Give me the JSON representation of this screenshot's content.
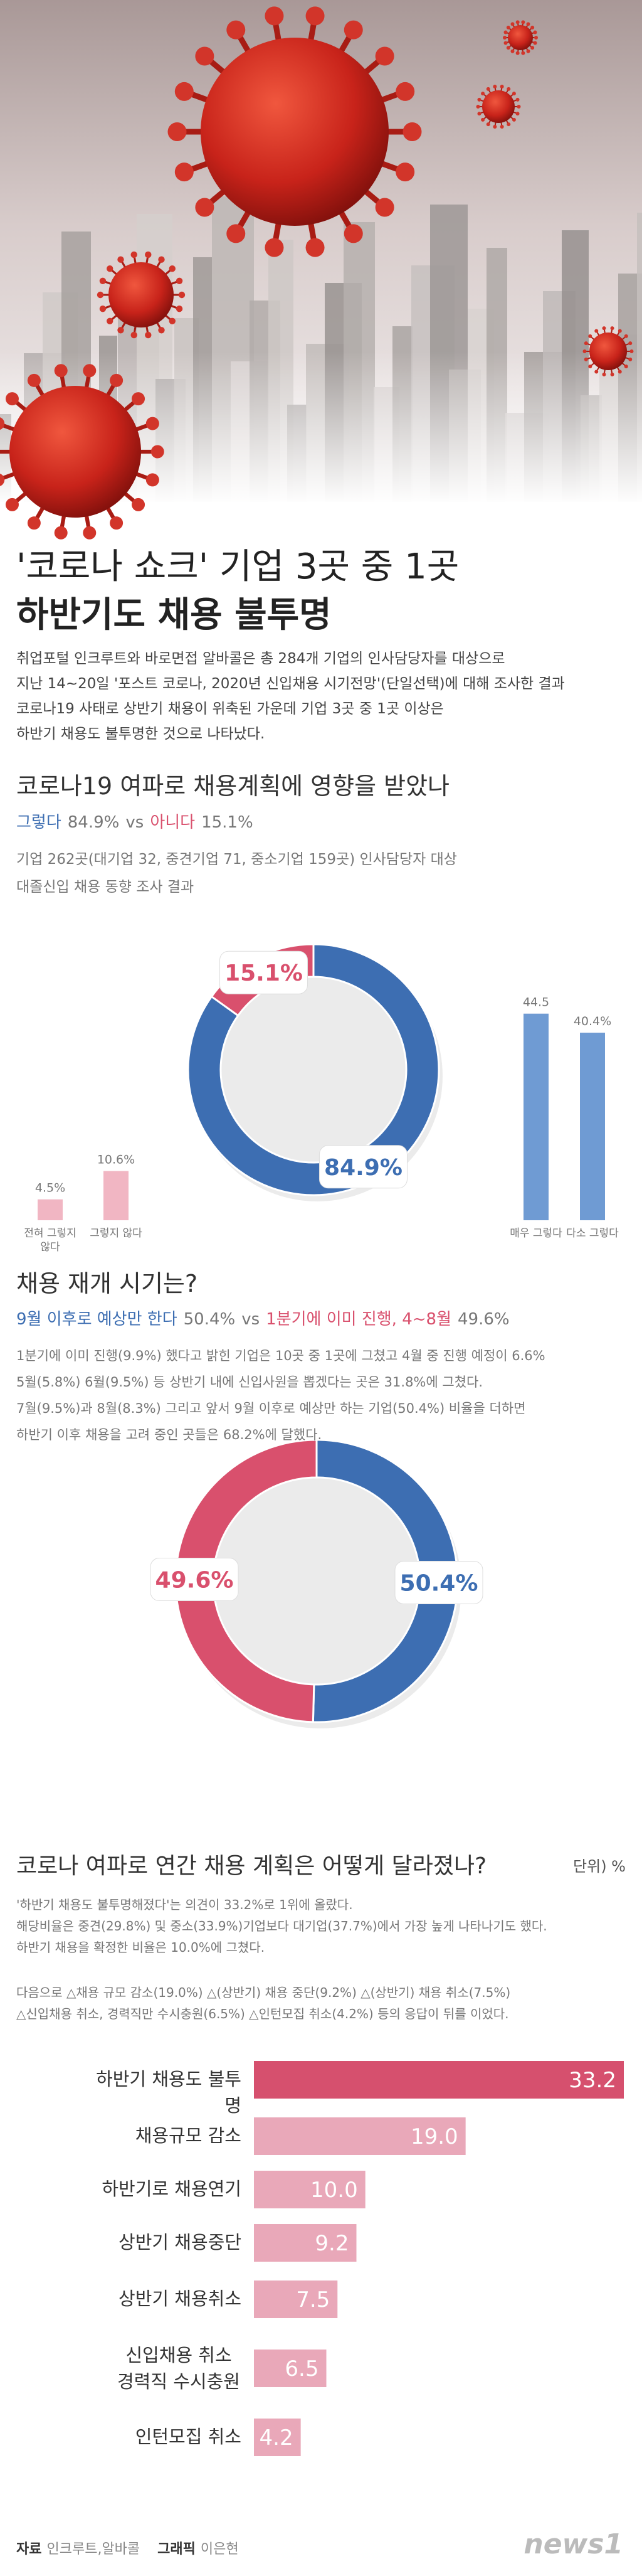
{
  "header": {
    "title_line1": "'코로나 쇼크' 기업 3곳 중 1곳",
    "title_line2": "하반기도 채용 불투명",
    "intro": [
      "취업포털 인크루트와 바로면접 알바콜은 총 284개 기업의 인사담당자를 대상으로",
      "지난 14~20일 '포스트 코로나, 2020년 신입채용 시기전망'(단일선택)에 대해 조사한 결과",
      "코로나19 사태로 상반기 채용이 위축된 가운데 기업 3곳 중 1곳 이상은",
      "하반기 채용도 불투명한 것으로 나타났다."
    ]
  },
  "chart_data": [
    {
      "type": "donut",
      "title": "코로나19 여파로 채용계획에 영향을 받았나",
      "versus": "vs",
      "note": [
        "기업 262곳(대기업 32, 중견기업 71, 중소기업 159곳) 인사담당자 대상",
        "대졸신입 채용 동향 조사 결과"
      ],
      "categories": [
        "그렇다",
        "아니다"
      ],
      "values": [
        84.9,
        15.1
      ],
      "value_labels": [
        "84.9%",
        "15.1%"
      ],
      "colors": [
        "#3d6eb2",
        "#d9506d"
      ]
    },
    {
      "type": "bar",
      "categories": [
        "전혀 그렇지 않다",
        "그렇지 않다",
        "매우 그렇다",
        "다소 그렇다"
      ],
      "values": [
        4.5,
        10.6,
        44.5,
        40.4
      ],
      "value_labels": [
        "4.5%",
        "10.6%",
        "44.5",
        "40.4%"
      ],
      "colors": [
        "#f1b6c3",
        "#f1b6c3",
        "#6f9bd3",
        "#6f9bd3"
      ]
    },
    {
      "type": "donut",
      "title": "채용 재개 시기는?",
      "versus": "vs",
      "note": [
        "1분기에 이미 진행(9.9%) 했다고 밝힌 기업은 10곳 중 1곳에 그쳤고 4월 중 진행 예정이 6.6%",
        "5월(5.8%) 6월(9.5%) 등 상반기 내에 신입사원을 뽑겠다는 곳은 31.8%에 그쳤다.",
        "7월(9.5%)과 8월(8.3%) 그리고 앞서 9월 이후로 예상만 하는 기업(50.4%) 비율을 더하면",
        "하반기 이후 채용을 고려 중인 곳들은 68.2%에 달했다."
      ],
      "categories": [
        "9월 이후로 예상만 한다",
        "1분기에 이미 진행, 4~8월"
      ],
      "values": [
        50.4,
        49.6
      ],
      "value_labels": [
        "50.4%",
        "49.6%"
      ],
      "colors": [
        "#3d6eb2",
        "#d9506d"
      ]
    },
    {
      "type": "hbar",
      "title": "코로나 여파로 연간 채용 계획은 어떻게 달라졌나?",
      "unit": "단위) %",
      "note": [
        "'하반기 채용도 불투명해졌다'는 의견이 33.2%로 1위에 올랐다.",
        "해당비율은 중견(29.8%) 및 중소(33.9%)기업보다 대기업(37.7%)에서 가장 높게 나타나기도 했다.",
        "하반기 채용을 확정한 비율은 10.0%에 그쳤다."
      ],
      "note2": [
        "다음으로 △채용 규모 감소(19.0%) △(상반기) 채용 중단(9.2%) △(상반기) 채용 취소(7.5%)",
        "△신입채용 취소, 경력직만 수시충원(6.5%) △인턴모집 취소(4.2%) 등의 응답이 뒤를 이었다."
      ],
      "categories": [
        "하반기 채용도 불투명",
        "채용규모 감소",
        "하반기로 채용연기",
        "상반기 채용중단",
        "상반기 채용취소",
        "신입채용 취소 경력직 수시충원",
        "인턴모집 취소"
      ],
      "values": [
        33.2,
        19.0,
        10.0,
        9.2,
        7.5,
        6.5,
        4.2
      ],
      "value_labels": [
        "33.2",
        "19.0",
        "10.0",
        "9.2",
        "7.5",
        "6.5",
        "4.2"
      ],
      "colors": [
        "#d6506e",
        "#e9a8b9",
        "#e9a8b9",
        "#e9a8b9",
        "#e9a8b9",
        "#e9a8b9",
        "#e9a8b9"
      ]
    }
  ],
  "footer": {
    "source_label": "자료",
    "source": "인크루트,알바콜",
    "graphic_label": "그래픽",
    "graphic": "이은현",
    "logo": "news1"
  }
}
